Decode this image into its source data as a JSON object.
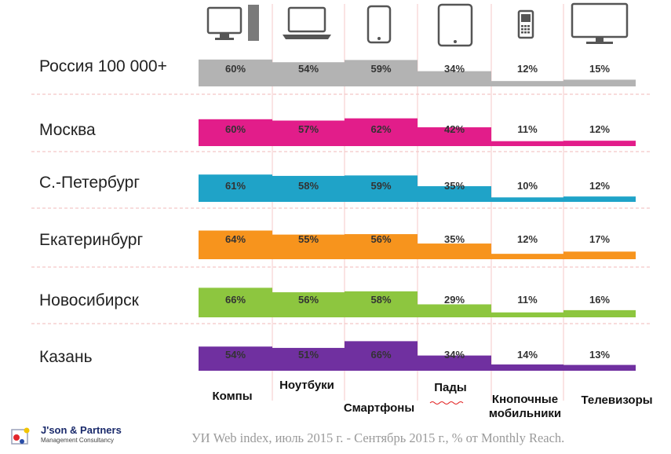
{
  "chart_data": {
    "type": "bar",
    "categories": [
      "Компы",
      "Ноутбуки",
      "Смартфоны",
      "Пады",
      "Кнопочные мобильники",
      "Телевизоры"
    ],
    "ylim": [
      0,
      100
    ],
    "series": [
      {
        "name": "Россия 100 000+",
        "values": [
          60,
          54,
          59,
          34,
          12,
          15
        ],
        "color": "#b3b3b3"
      },
      {
        "name": "Москва",
        "values": [
          60,
          57,
          62,
          42,
          11,
          12
        ],
        "color": "#e21d8a"
      },
      {
        "name": "С.-Петербург",
        "values": [
          61,
          58,
          59,
          35,
          10,
          12
        ],
        "color": "#1fa3c8"
      },
      {
        "name": "Екатеринбург",
        "values": [
          64,
          55,
          56,
          35,
          12,
          17
        ],
        "color": "#f7941d"
      },
      {
        "name": "Новосибирск",
        "values": [
          66,
          56,
          58,
          29,
          11,
          16
        ],
        "color": "#8dc63f"
      },
      {
        "name": "Казань",
        "values": [
          54,
          51,
          66,
          34,
          14,
          13
        ],
        "color": "#7030a0"
      }
    ],
    "value_labels": [
      [
        "60%",
        "54%",
        "59%",
        "34%",
        "12%",
        "15%"
      ],
      [
        "60%",
        "57%",
        "62%",
        "42%",
        "11%",
        "12%"
      ],
      [
        "61%",
        "58%",
        "59%",
        "35%",
        "10%",
        "12%"
      ],
      [
        "64%",
        "55%",
        "56%",
        "35%",
        "12%",
        "17%"
      ],
      [
        "66%",
        "56%",
        "58%",
        "29%",
        "11%",
        "16%"
      ],
      [
        "54%",
        "51%",
        "66%",
        "34%",
        "14%",
        "13%"
      ]
    ],
    "category_label_lines": [
      [
        "Компы"
      ],
      [
        "Ноутбуки"
      ],
      [
        "Смартфоны"
      ],
      [
        "Пады"
      ],
      [
        "Кнопочные",
        "мобильники"
      ],
      [
        "Телевизоры"
      ]
    ],
    "icons": [
      "desktop-computer-icon",
      "laptop-icon",
      "smartphone-icon",
      "tablet-icon",
      "feature-phone-icon",
      "tv-icon"
    ]
  },
  "footer": {
    "logo_title": "J'son & Partners",
    "logo_subtitle": "Management Consultancy",
    "source": "УИ Web index, июль 2015 г. - Сентябрь 2015 г., % от Monthly Reach."
  }
}
